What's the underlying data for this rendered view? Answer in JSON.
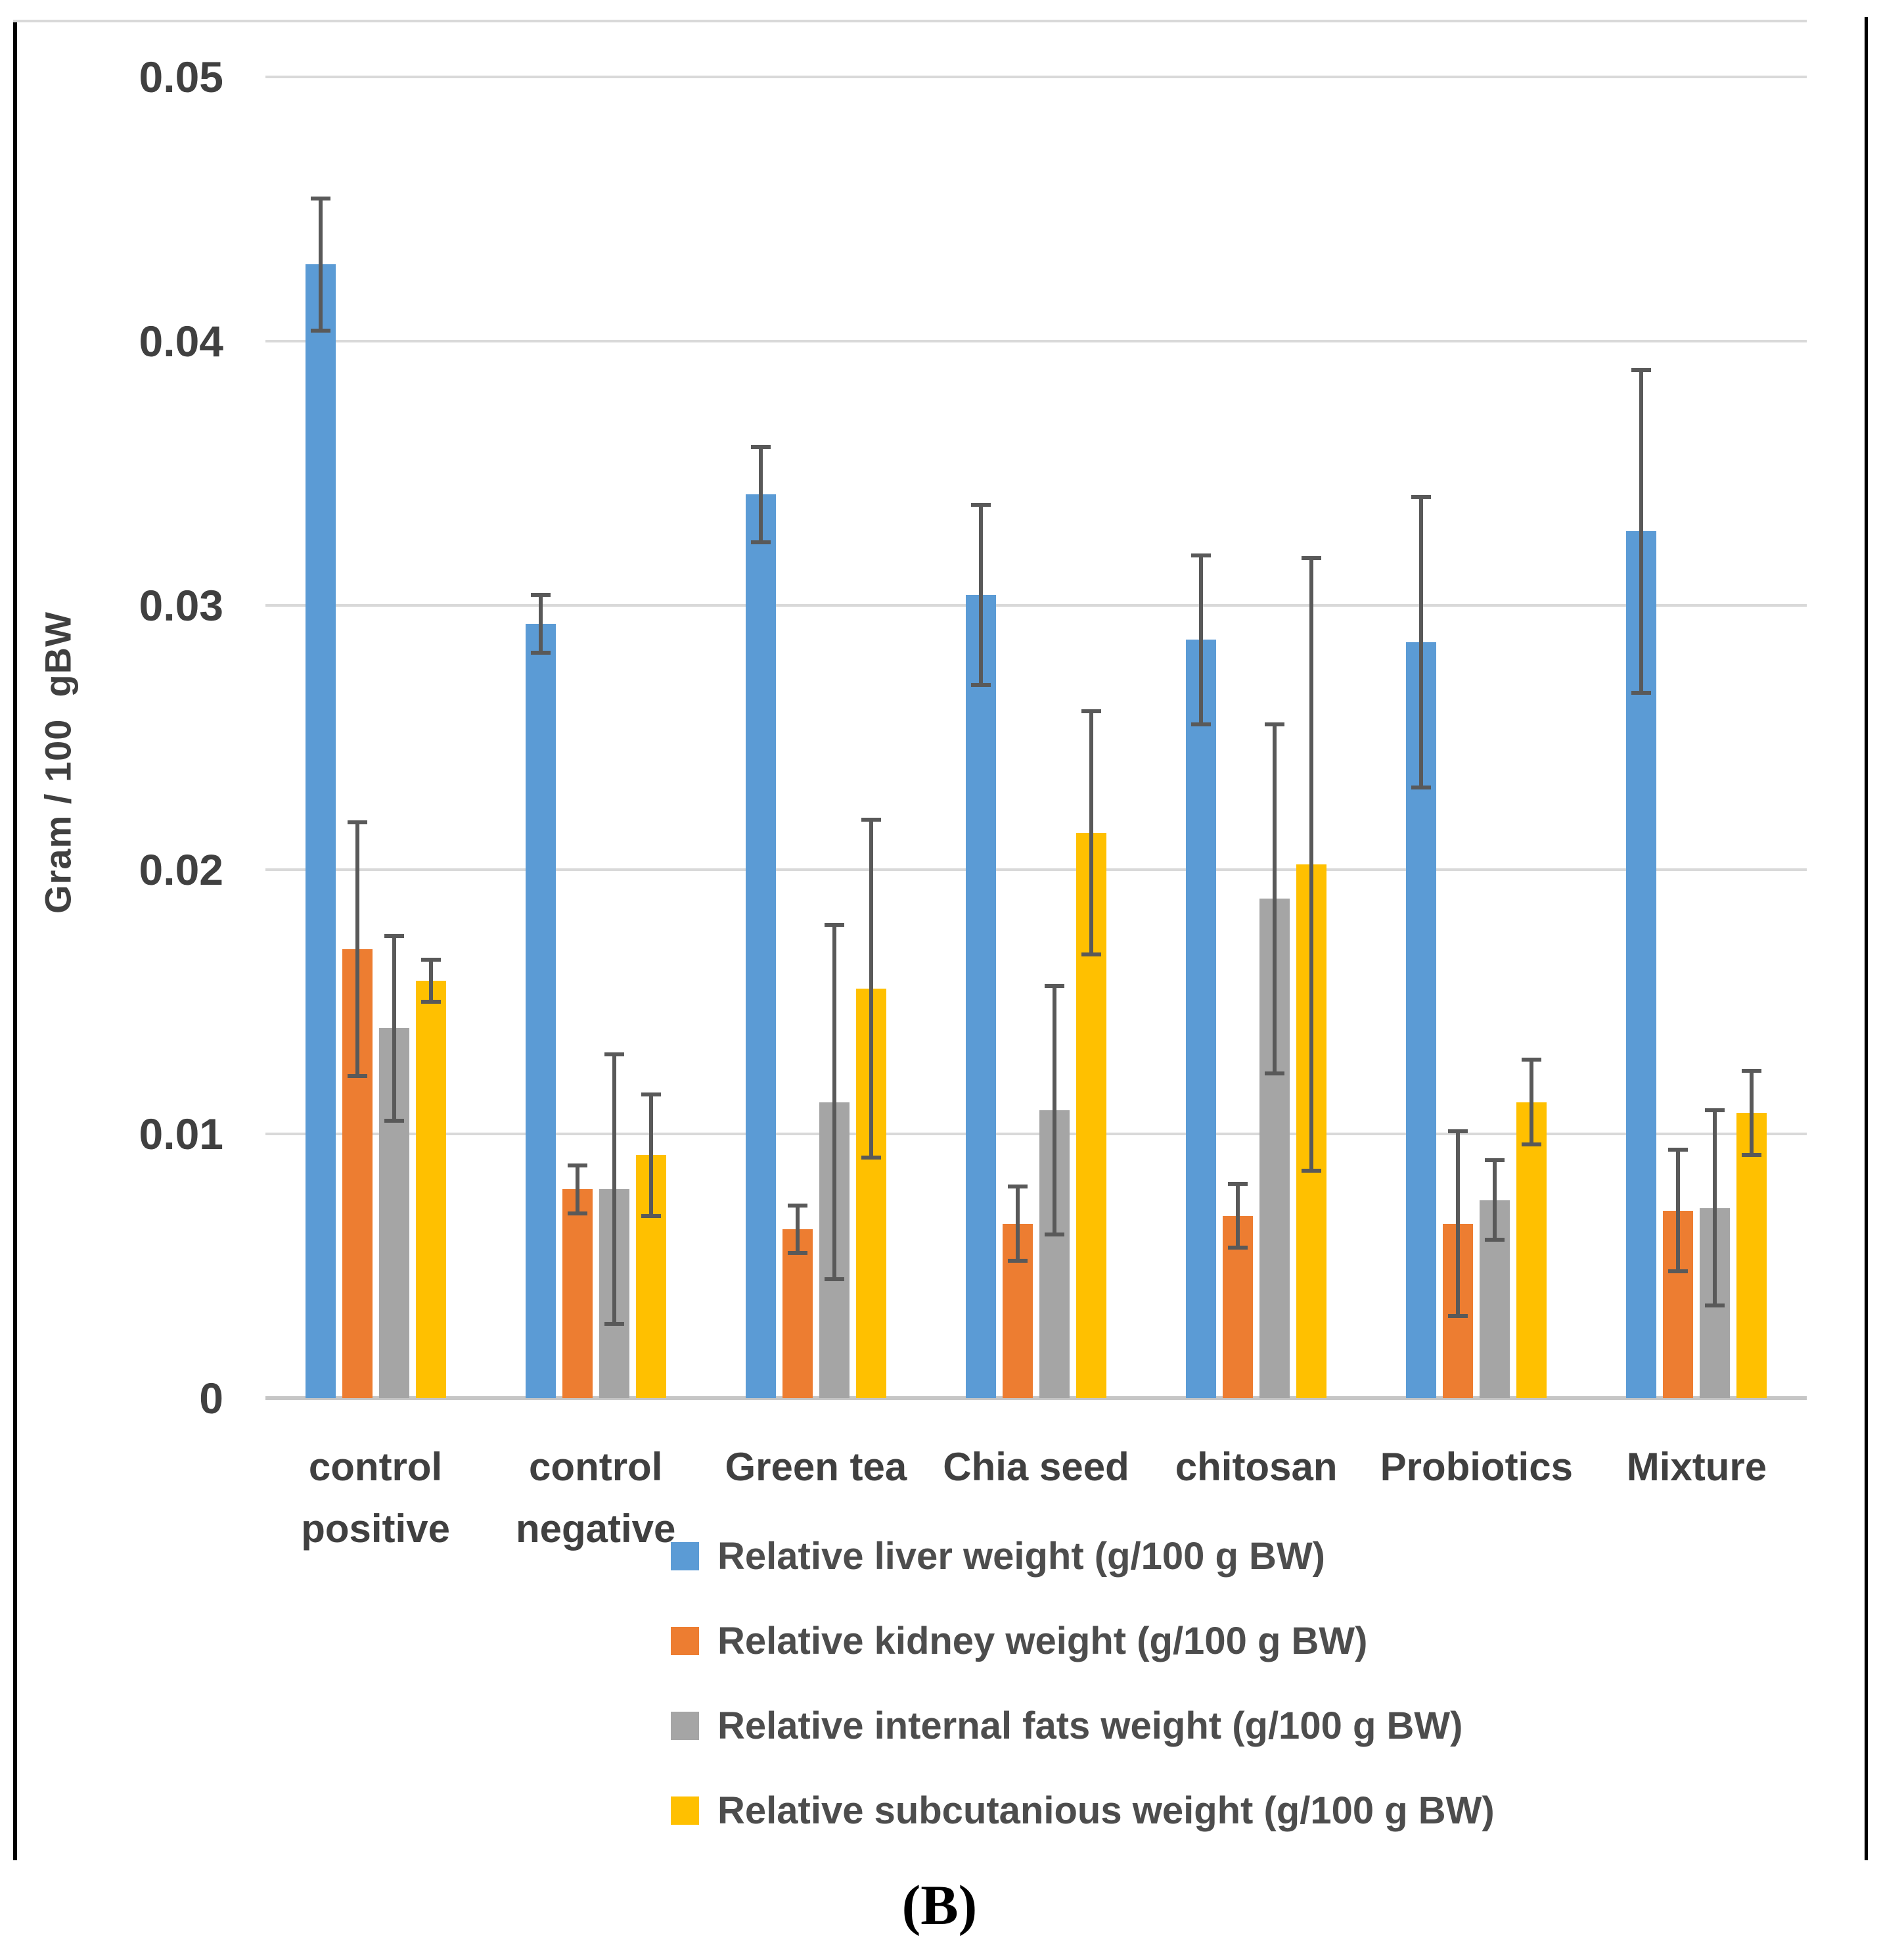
{
  "figure": {
    "caption": "(B)"
  },
  "chart_data": {
    "type": "bar",
    "title": "",
    "xlabel": "",
    "ylabel": "Gram / 100  gBW",
    "ylim": [
      0,
      0.05
    ],
    "yticks": [
      0,
      0.01,
      0.02,
      0.03,
      0.04,
      0.05
    ],
    "ytick_labels": [
      "0",
      "0.01",
      "0.02",
      "0.03",
      "0.04",
      "0.05"
    ],
    "grid": true,
    "legend_position": "bottom",
    "gridline_color": "#d9d9d9",
    "error_bar_color": "#595959",
    "categories": [
      [
        "control",
        "positive"
      ],
      [
        "control",
        "negative"
      ],
      [
        "Green tea"
      ],
      [
        "Chia seed"
      ],
      [
        "chitosan"
      ],
      [
        "Probiotics"
      ],
      [
        "Mixture"
      ]
    ],
    "series": [
      {
        "key": "liver",
        "name": "Relative liver weight (g/100 g BW)",
        "color": "#5B9BD5",
        "values": [
          0.0429,
          0.0293,
          0.0342,
          0.0304,
          0.0287,
          0.0286,
          0.0328
        ],
        "errors": [
          0.0025,
          0.0011,
          0.0018,
          0.0034,
          0.0032,
          0.0055,
          0.0061
        ]
      },
      {
        "key": "kidney",
        "name": "Relative kidney weight (g/100 g BW)",
        "color": "#ED7D31",
        "values": [
          0.017,
          0.0079,
          0.0064,
          0.0066,
          0.0069,
          0.0066,
          0.0071
        ],
        "errors": [
          0.0048,
          0.0009,
          0.0009,
          0.0014,
          0.0012,
          0.0035,
          0.0023
        ]
      },
      {
        "key": "internal-fats",
        "name": "Relative internal fats weight (g/100 g BW)",
        "color": "#A5A5A5",
        "values": [
          0.014,
          0.0079,
          0.0112,
          0.0109,
          0.0189,
          0.0075,
          0.0072
        ],
        "errors": [
          0.0035,
          0.0051,
          0.0067,
          0.0047,
          0.0066,
          0.0015,
          0.0037
        ]
      },
      {
        "key": "subcutaneous",
        "name": "Relative subcutanious weight (g/100 g BW)",
        "color": "#FFC000",
        "values": [
          0.0158,
          0.0092,
          0.0155,
          0.0214,
          0.0202,
          0.0112,
          0.0108
        ],
        "errors": [
          0.0008,
          0.0023,
          0.0064,
          0.0046,
          0.0116,
          0.0016,
          0.0016
        ]
      }
    ]
  }
}
